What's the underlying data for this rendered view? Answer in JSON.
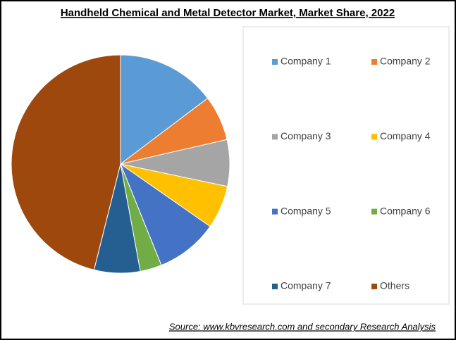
{
  "chart_data": {
    "type": "pie",
    "title": "Handheld Chemical and Metal Detector Market, Market Share, 2022",
    "categories": [
      "Company 1",
      "Company 2",
      "Company 3",
      "Company 4",
      "Company 5",
      "Company 6",
      "Company 7",
      "Others"
    ],
    "values": [
      14.7,
      6.7,
      6.9,
      6.4,
      9.2,
      3.2,
      6.8,
      46.1
    ],
    "colors": [
      "#5b9bd5",
      "#ed7d31",
      "#a5a5a5",
      "#ffc000",
      "#4472c4",
      "#70ad47",
      "#255e91",
      "#9e480e"
    ],
    "source": "Source: www.kbvresearch.com and secondary Research Analysis"
  }
}
